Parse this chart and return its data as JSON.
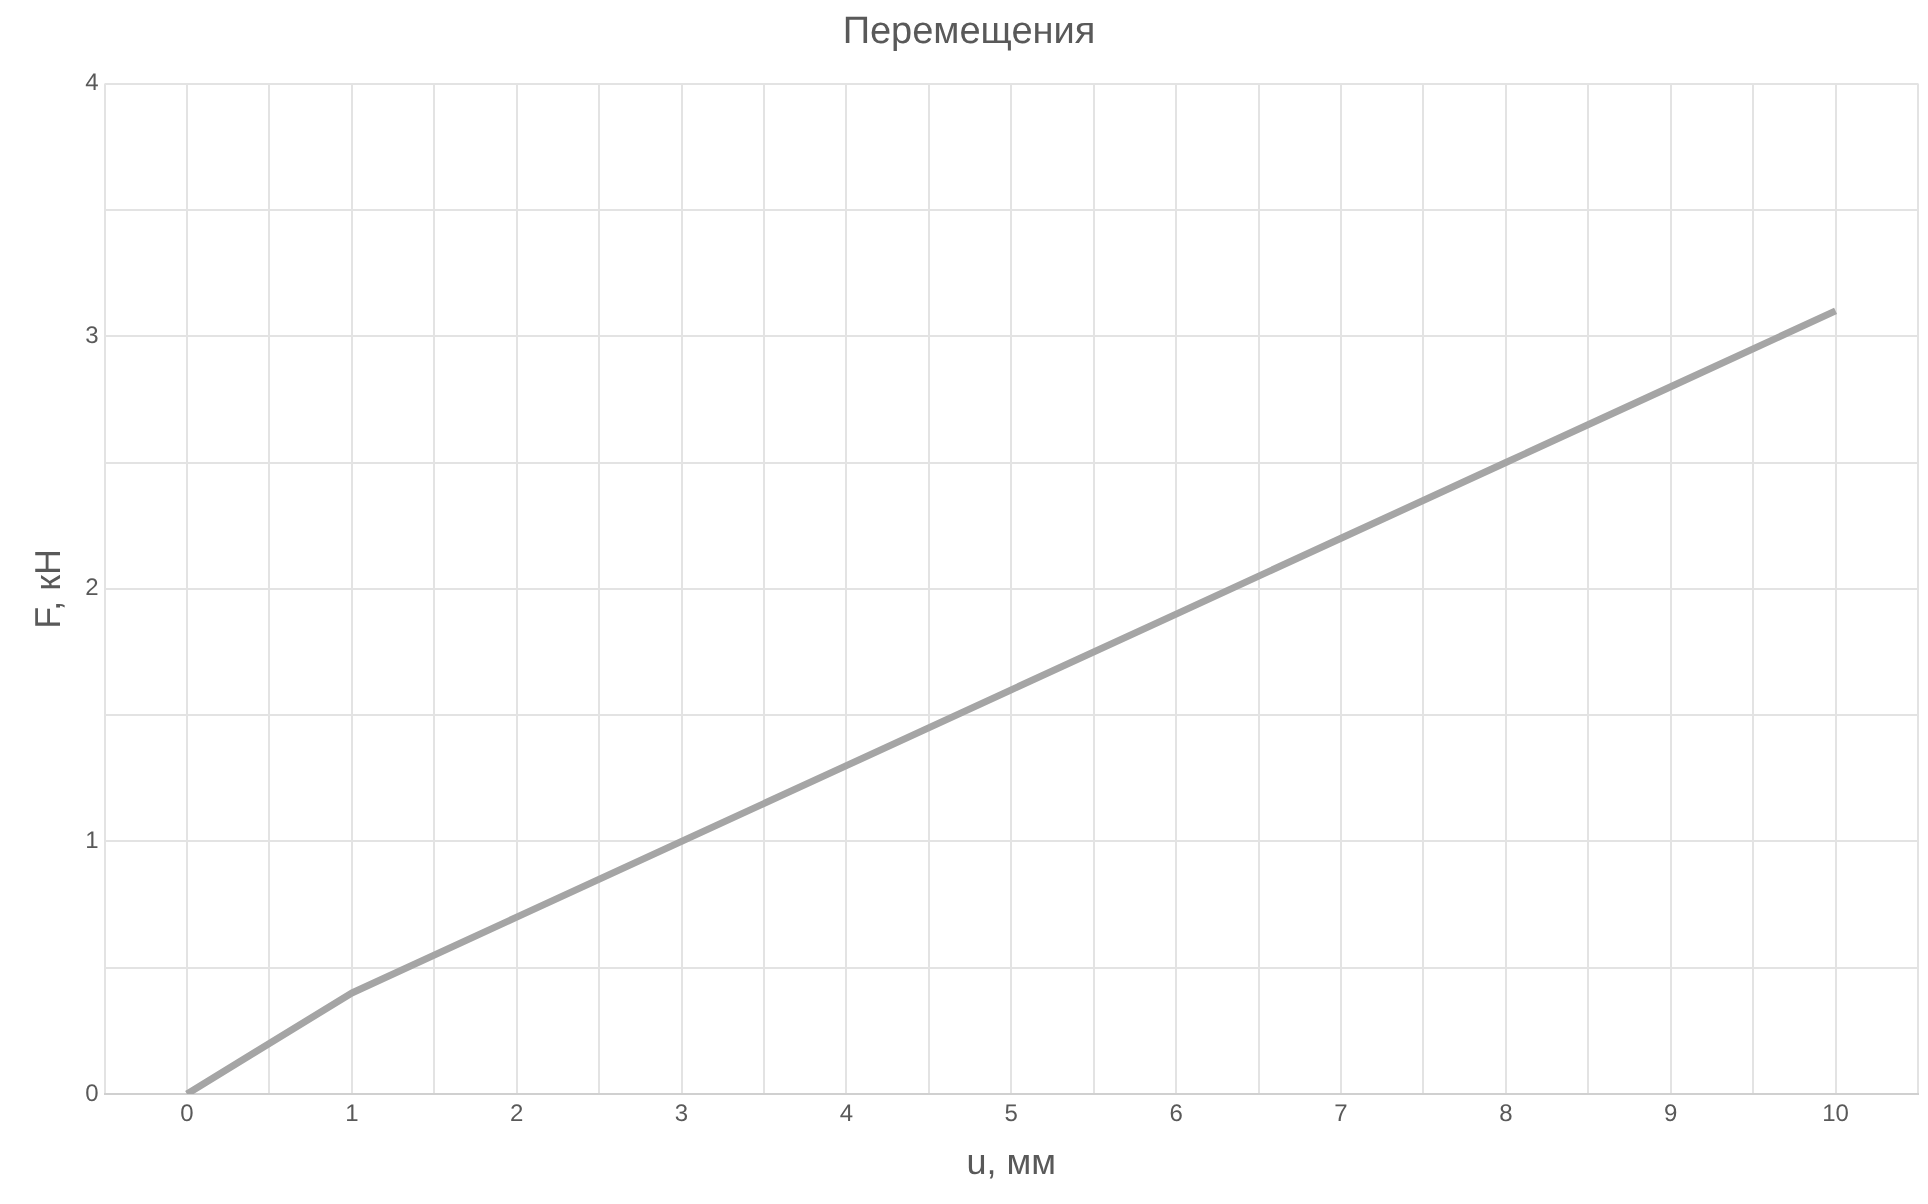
{
  "chart_data": {
    "type": "line",
    "title": "Перемещения",
    "xlabel": "u, мм",
    "ylabel": "F, кН",
    "x": [
      0,
      1,
      2,
      3,
      4,
      5,
      6,
      7,
      8,
      9,
      10
    ],
    "series": [
      {
        "color": "#a5a5a5",
        "values": [
          0,
          0.4,
          0.7,
          1.0,
          1.3,
          1.6,
          1.9,
          2.2,
          2.5,
          2.8,
          3.1
        ]
      }
    ],
    "xlim": [
      -0.5,
      10.5
    ],
    "xticks": [
      {
        "value": -0.5,
        "label": null
      },
      0,
      {
        "value": 0.5,
        "label": null
      },
      1,
      {
        "value": 1.5,
        "label": null
      },
      2,
      {
        "value": 2.5,
        "label": null
      },
      3,
      {
        "value": 3.5,
        "label": null
      },
      4,
      {
        "value": 4.5,
        "label": null
      },
      5,
      {
        "value": 5.5,
        "label": null
      },
      6,
      {
        "value": 6.5,
        "label": null
      },
      7,
      {
        "value": 7.5,
        "label": null
      },
      8,
      {
        "value": 8.5,
        "label": null
      },
      9,
      {
        "value": 9.5,
        "label": null
      },
      10,
      {
        "value": 10.5,
        "label": null
      }
    ],
    "ylim": [
      0,
      4
    ],
    "yticks": [
      0,
      {
        "value": 0.5,
        "label": null
      },
      1,
      {
        "value": 1.5,
        "label": null
      },
      2,
      {
        "value": 2.5,
        "label": null
      },
      3,
      {
        "value": 3.5,
        "label": null
      },
      4
    ],
    "grid": true,
    "legend": false,
    "marker": "none",
    "line_style": "solid"
  }
}
